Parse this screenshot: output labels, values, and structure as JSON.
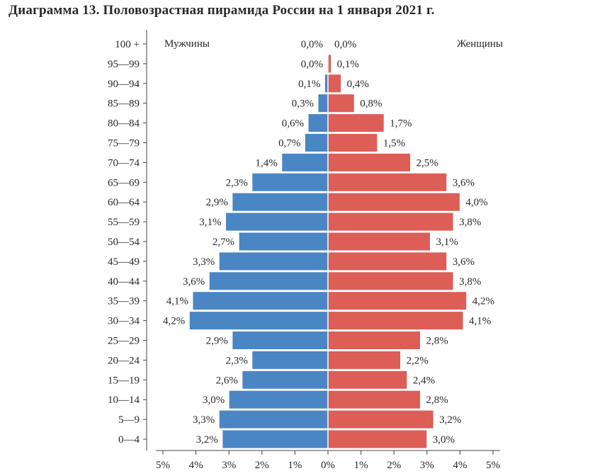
{
  "title": "Диаграмма 13. Половозрастная пирамида России на 1 января 2021 г.",
  "colors": {
    "male": "#4a86c4",
    "female": "#dc5e57"
  },
  "chart_data": {
    "type": "bar",
    "orientation": "horizontal",
    "layout": "population-pyramid",
    "title": "Диаграмма 13. Половозрастная пирамида России на 1 января 2021 г.",
    "categories": [
      "100 +",
      "95—99",
      "90—94",
      "85—89",
      "80—84",
      "75—79",
      "70—74",
      "65—69",
      "60—64",
      "55—59",
      "50—54",
      "45—49",
      "40—44",
      "35—39",
      "30—34",
      "25—29",
      "20—24",
      "15—19",
      "10—14",
      "5—9",
      "0—4"
    ],
    "series": [
      {
        "name": "Мужчины",
        "side": "left",
        "values": [
          0.0,
          0.0,
          0.1,
          0.3,
          0.6,
          0.7,
          1.4,
          2.3,
          2.9,
          3.1,
          2.7,
          3.3,
          3.6,
          4.1,
          4.2,
          2.9,
          2.3,
          2.6,
          3.0,
          3.3,
          3.2
        ],
        "labels": [
          "0,0%",
          "0,0%",
          "0,1%",
          "0,3%",
          "0,6%",
          "0,7%",
          "1,4%",
          "2,3%",
          "2,9%",
          "3,1%",
          "2,7%",
          "3,3%",
          "3,6%",
          "4,1%",
          "4,2%",
          "2,9%",
          "2,3%",
          "2,6%",
          "3,0%",
          "3,3%",
          "3,2%"
        ]
      },
      {
        "name": "Женщины",
        "side": "right",
        "values": [
          0.0,
          0.1,
          0.4,
          0.8,
          1.7,
          1.5,
          2.5,
          3.6,
          4.0,
          3.8,
          3.1,
          3.6,
          3.8,
          4.2,
          4.1,
          2.8,
          2.2,
          2.4,
          2.8,
          3.2,
          3.0
        ],
        "labels": [
          "0,0%",
          "0,1%",
          "0,4%",
          "0,8%",
          "1,7%",
          "1,5%",
          "2,5%",
          "3,6%",
          "4,0%",
          "3,8%",
          "3,1%",
          "3,6%",
          "3,8%",
          "4,2%",
          "4,1%",
          "2,8%",
          "2,2%",
          "2,4%",
          "2,8%",
          "3,2%",
          "3,0%"
        ]
      }
    ],
    "x_ticks": [
      "5%",
      "4%",
      "3%",
      "2%",
      "1%",
      "0%",
      "1%",
      "2%",
      "3%",
      "4%",
      "5%"
    ],
    "xlim": [
      -5,
      5
    ],
    "unit": "%",
    "grid": false
  }
}
